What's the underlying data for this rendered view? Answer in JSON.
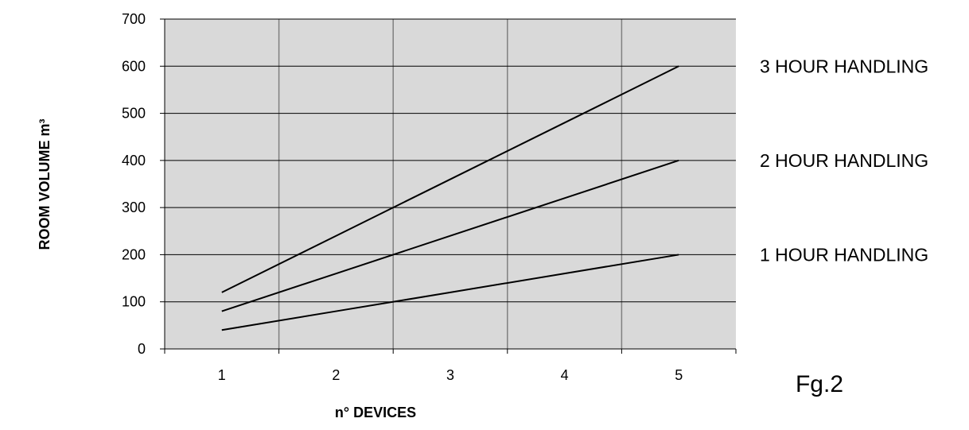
{
  "chart_data": {
    "type": "line",
    "x": [
      1,
      2,
      3,
      4,
      5
    ],
    "x_tick_labels": [
      "1",
      "2",
      "3",
      "4",
      "5"
    ],
    "y_ticks": [
      0,
      100,
      200,
      300,
      400,
      500,
      600,
      700
    ],
    "ylim": [
      0,
      700
    ],
    "xlabel": "n° DEVICES",
    "ylabel": "ROOM VOLUME  m³",
    "grid": true,
    "plot_background": "#d9d9d9",
    "line_color": "#000000",
    "grid_color": "#808080",
    "series": [
      {
        "name": "3 HOUR HANDLING",
        "values": [
          120,
          240,
          360,
          480,
          600
        ]
      },
      {
        "name": "2 HOUR HANDLING",
        "values": [
          80,
          160,
          240,
          320,
          400
        ]
      },
      {
        "name": "1 HOUR HANDLING",
        "values": [
          40,
          80,
          120,
          160,
          200
        ]
      }
    ],
    "figure_label": "Fg.2"
  }
}
